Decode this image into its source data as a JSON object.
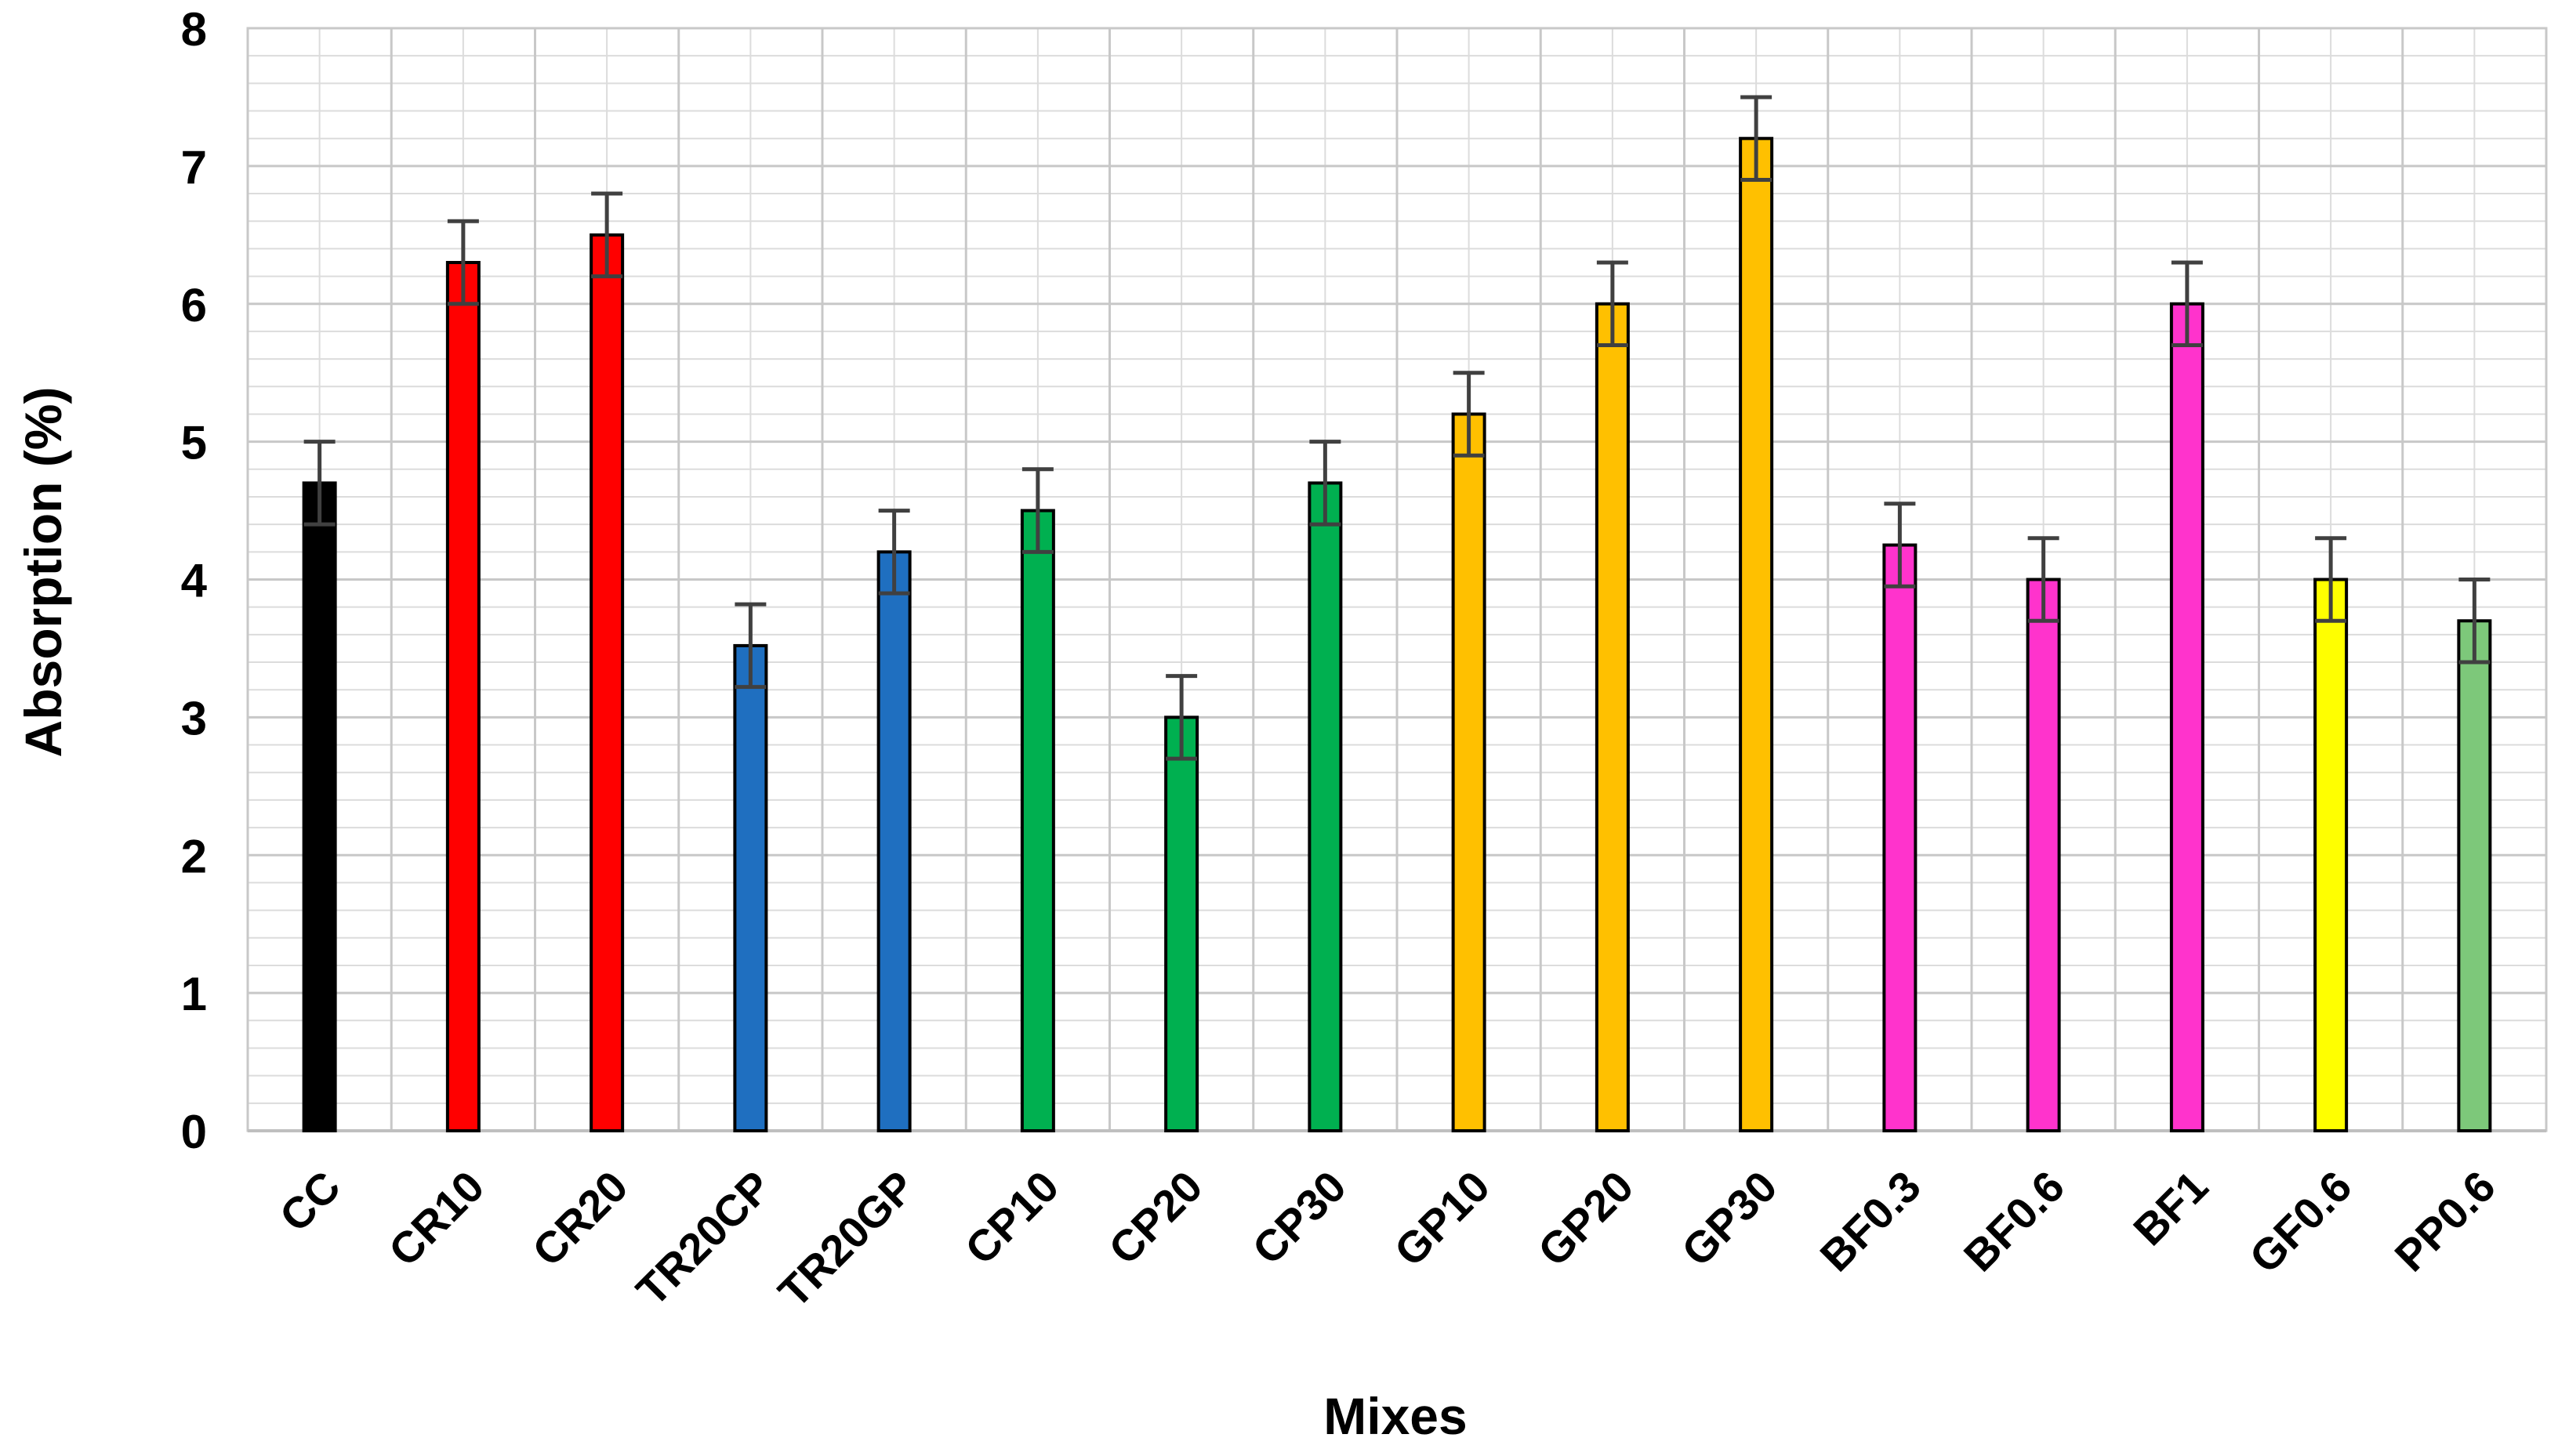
{
  "chart_data": {
    "type": "bar",
    "title": "",
    "xlabel": "Mixes",
    "ylabel": "Absorption  (%)",
    "ylim": [
      0,
      8
    ],
    "yticks": [
      0,
      1,
      2,
      3,
      4,
      5,
      6,
      7,
      8
    ],
    "grid": true,
    "legend": "none",
    "error_bars": true,
    "categories": [
      "CC",
      "CR10",
      "CR20",
      "TR20CP",
      "TR20GP",
      "CP10",
      "CP20",
      "CP30",
      "GP10",
      "GP20",
      "GP30",
      "BF0.3",
      "BF0.6",
      "BF1",
      "GF0.6",
      "PP0.6"
    ],
    "values": [
      4.7,
      6.3,
      6.5,
      3.52,
      4.2,
      4.5,
      3.0,
      4.7,
      5.2,
      6.0,
      7.2,
      4.25,
      4.0,
      6.0,
      4.0,
      3.7
    ],
    "errors": [
      0.3,
      0.3,
      0.3,
      0.3,
      0.3,
      0.3,
      0.3,
      0.3,
      0.3,
      0.3,
      0.3,
      0.3,
      0.3,
      0.3,
      0.3,
      0.3
    ],
    "colors": [
      "#000000",
      "#ff0000",
      "#ff0000",
      "#1f6fc0",
      "#1f6fc0",
      "#00b050",
      "#00b050",
      "#00b050",
      "#ffc000",
      "#ffc000",
      "#ffc000",
      "#ff33cc",
      "#ff33cc",
      "#ff33cc",
      "#ffff00",
      "#7dc87a"
    ]
  }
}
